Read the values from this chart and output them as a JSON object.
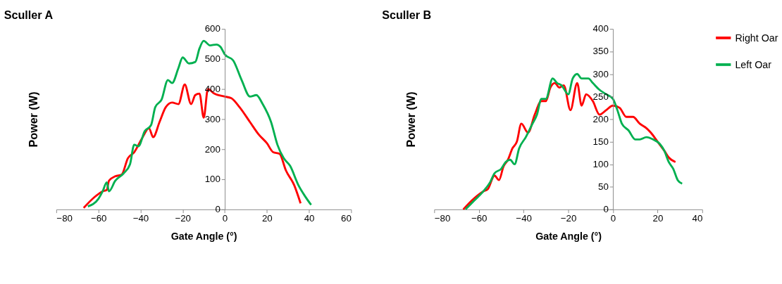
{
  "chart_data": [
    {
      "type": "line",
      "title": "Sculler A",
      "xlabel": "Gate Angle (°)",
      "ylabel": "Power (W)",
      "xlim": [
        -80,
        60
      ],
      "xticks": [
        -80,
        -60,
        -40,
        -20,
        0,
        20,
        40,
        60
      ],
      "ylim": [
        0,
        600
      ],
      "yticks": [
        0,
        100,
        200,
        300,
        400,
        500,
        600
      ],
      "grid": false,
      "legend": false,
      "marker": "none",
      "line_style": "solid",
      "series": [
        {
          "color": "#ff0000",
          "x": [
            -67,
            -62,
            -58,
            -56,
            -55,
            -52,
            -49,
            -46,
            -43,
            -39,
            -36,
            -34,
            -31,
            -28,
            -25,
            -22,
            -19,
            -16,
            -14,
            -12,
            -10,
            -8,
            -5,
            0,
            3,
            7,
            12,
            16,
            20,
            23,
            26,
            29,
            33,
            36
          ],
          "values": [
            5,
            40,
            60,
            65,
            95,
            110,
            115,
            170,
            190,
            240,
            270,
            240,
            290,
            340,
            355,
            350,
            415,
            350,
            380,
            385,
            305,
            400,
            385,
            375,
            370,
            340,
            290,
            250,
            220,
            190,
            185,
            130,
            80,
            20
          ]
        },
        {
          "color": "#00b050",
          "x": [
            -65,
            -60,
            -58,
            -56,
            -55,
            -52,
            -48,
            -45,
            -43,
            -41,
            -38,
            -35,
            -33,
            -30,
            -27,
            -25,
            -22,
            -20,
            -17,
            -14,
            -12,
            -10,
            -7,
            -4,
            -2,
            0,
            4,
            8,
            12,
            15,
            18,
            22,
            25,
            28,
            31,
            35,
            38,
            41
          ],
          "values": [
            10,
            35,
            60,
            90,
            60,
            95,
            120,
            150,
            215,
            210,
            260,
            280,
            340,
            365,
            430,
            420,
            470,
            505,
            485,
            490,
            535,
            560,
            545,
            548,
            540,
            515,
            495,
            430,
            375,
            380,
            350,
            290,
            215,
            170,
            145,
            80,
            45,
            15
          ]
        }
      ]
    },
    {
      "type": "line",
      "title": "Sculler B",
      "xlabel": "Gate Angle (°)",
      "ylabel": "Power (W)",
      "xlim": [
        -80,
        40
      ],
      "xticks": [
        -80,
        -60,
        -40,
        -20,
        0,
        20,
        40
      ],
      "ylim": [
        0,
        400
      ],
      "yticks": [
        0,
        50,
        100,
        150,
        200,
        250,
        300,
        350,
        400
      ],
      "grid": false,
      "legend": "right",
      "marker": "none",
      "line_style": "solid",
      "series": [
        {
          "name": "Right Oar",
          "color": "#ff0000",
          "x": [
            -67,
            -62,
            -58,
            -56,
            -53,
            -51,
            -49,
            -47,
            -45,
            -43,
            -41,
            -38,
            -35,
            -32,
            -30,
            -28,
            -26,
            -24,
            -22,
            -19,
            -16,
            -14,
            -12,
            -9,
            -6,
            -3,
            0,
            3,
            6,
            9,
            12,
            15,
            17,
            20,
            23,
            25,
            28
          ],
          "values": [
            0,
            25,
            40,
            45,
            75,
            65,
            95,
            110,
            135,
            150,
            190,
            170,
            210,
            240,
            240,
            270,
            280,
            270,
            275,
            220,
            280,
            230,
            255,
            240,
            210,
            220,
            230,
            225,
            205,
            205,
            190,
            180,
            170,
            150,
            130,
            115,
            105
          ]
        },
        {
          "name": "Left Oar",
          "color": "#00b050",
          "x": [
            -66,
            -62,
            -58,
            -55,
            -53,
            -50,
            -48,
            -46,
            -44,
            -42,
            -39,
            -36,
            -34,
            -32,
            -30,
            -27,
            -25,
            -23,
            -20,
            -18,
            -16,
            -14,
            -11,
            -9,
            -6,
            -3,
            0,
            2,
            4,
            7,
            10,
            12,
            15,
            18,
            21,
            23,
            25,
            27,
            29,
            31
          ],
          "values": [
            0,
            20,
            40,
            60,
            80,
            90,
            105,
            110,
            100,
            135,
            160,
            190,
            210,
            245,
            245,
            290,
            280,
            275,
            255,
            290,
            300,
            290,
            290,
            280,
            265,
            255,
            245,
            220,
            190,
            175,
            155,
            155,
            160,
            155,
            145,
            130,
            105,
            90,
            65,
            57
          ]
        }
      ]
    }
  ]
}
